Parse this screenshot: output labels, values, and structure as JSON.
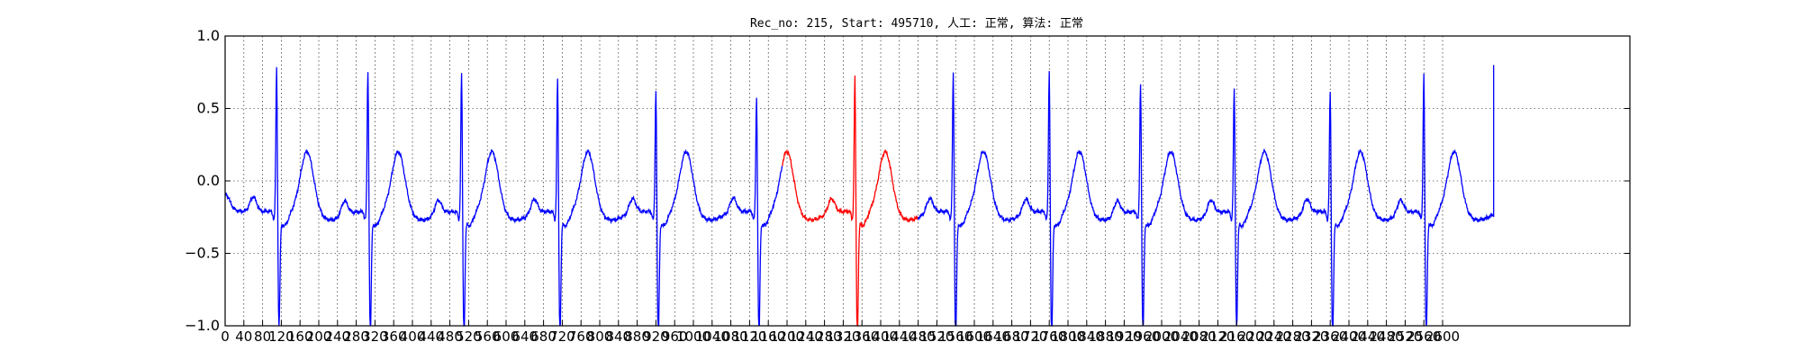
{
  "chart_data": {
    "type": "line",
    "title": "Rec_no: 215, Start: 495710, 人工: 正常, 算法: 正常",
    "xlabel": "",
    "ylabel": "",
    "xlim": [
      0,
      3000
    ],
    "ylim": [
      -1.0,
      1.0
    ],
    "grid": true,
    "legend": "none",
    "y_ticks": [
      "1.0",
      "0.5",
      "0.0",
      "−0.5",
      "−1.0"
    ],
    "y_tick_values": [
      1.0,
      0.5,
      0.0,
      -0.5,
      -1.0
    ],
    "x_ticks": [
      "0",
      "40",
      "80",
      "120",
      "160",
      "200",
      "240",
      "280",
      "320",
      "360",
      "400",
      "440",
      "480",
      "520",
      "560",
      "600",
      "640",
      "680",
      "720",
      "760",
      "800",
      "840",
      "880",
      "920",
      "960",
      "1000",
      "1040",
      "1080",
      "1120",
      "1160",
      "1200",
      "1240",
      "1280",
      "1320",
      "1360",
      "1400",
      "1440",
      "1480",
      "1520",
      "1560",
      "1600",
      "1640",
      "1680",
      "1720",
      "1760",
      "1800",
      "1840",
      "1880",
      "1920",
      "1960",
      "2000",
      "2040",
      "2080",
      "2120",
      "2160",
      "2200",
      "2240",
      "2280",
      "2320",
      "2360",
      "2400",
      "2440",
      "2480",
      "2520",
      "2560",
      "2600"
    ],
    "x_tick_values": [
      0,
      40,
      80,
      120,
      160,
      200,
      240,
      280,
      320,
      360,
      400,
      440,
      480,
      520,
      560,
      600,
      640,
      680,
      720,
      760,
      800,
      840,
      880,
      920,
      960,
      1000,
      1040,
      1080,
      1120,
      1160,
      1200,
      1240,
      1280,
      1320,
      1360,
      1400,
      1440,
      1480,
      1520,
      1560,
      1600,
      1640,
      1680,
      1720,
      1760,
      1800,
      1840,
      1880,
      1920,
      1960,
      2000,
      2040,
      2080,
      2120,
      2160,
      2200,
      2240,
      2280,
      2320,
      2360,
      2400,
      2440,
      2480,
      2520,
      2560,
      2600
    ],
    "beats": [
      {
        "r": 110,
        "peak": 0.83,
        "trough": -0.86
      },
      {
        "r": 305,
        "peak": 0.82,
        "trough": -0.92
      },
      {
        "r": 505,
        "peak": 0.8,
        "trough": -0.94
      },
      {
        "r": 710,
        "peak": 0.76,
        "trough": -0.92
      },
      {
        "r": 920,
        "peak": 0.69,
        "trough": -0.95
      },
      {
        "r": 1135,
        "peak": 0.63,
        "trough": -0.92
      },
      {
        "r": 1345,
        "peak": 0.77,
        "trough": -0.93
      },
      {
        "r": 1555,
        "peak": 0.8,
        "trough": -0.97
      },
      {
        "r": 1760,
        "peak": 0.81,
        "trough": -0.95
      },
      {
        "r": 1955,
        "peak": 0.74,
        "trough": -0.92
      },
      {
        "r": 2155,
        "peak": 0.69,
        "trough": -0.88
      },
      {
        "r": 2360,
        "peak": 0.67,
        "trough": -0.96
      },
      {
        "r": 2560,
        "peak": 0.8,
        "trough": -0.93
      }
    ],
    "series": [
      {
        "color": "#0000ff",
        "x_range": [
          0,
          1190
        ]
      },
      {
        "color": "#ff0000",
        "x_range": [
          1190,
          1480
        ]
      },
      {
        "color": "#0000ff",
        "x_range": [
          1480,
          2709
        ]
      }
    ],
    "final_value": [
      2709,
      0.8
    ]
  }
}
